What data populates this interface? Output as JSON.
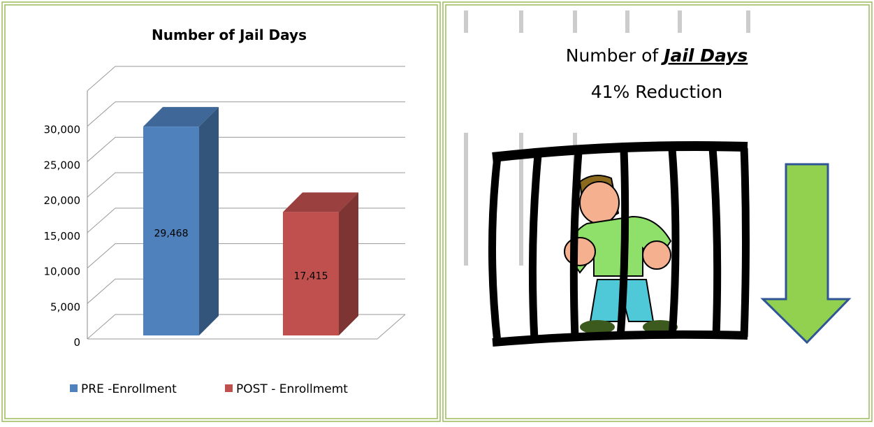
{
  "chart_data": {
    "type": "bar3d",
    "title": "Number of Jail Days",
    "categories": [
      null
    ],
    "series": [
      {
        "name": "PRE -Enrollment",
        "color": "#4f81bd",
        "values": [
          29468
        ],
        "value_labels": [
          "29,468"
        ]
      },
      {
        "name": "POST - Enrollmemt",
        "color": "#c0504d",
        "values": [
          17415
        ],
        "value_labels": [
          "17,415"
        ]
      }
    ],
    "ylim": [
      0,
      35000
    ],
    "yticks": [
      0,
      {
        "value": 5000,
        "label": "5,000"
      },
      {
        "value": 10000,
        "label": "10,000"
      },
      {
        "value": 15000,
        "label": "15,000"
      },
      {
        "value": 20000,
        "label": "20,000"
      },
      {
        "value": 25000,
        "label": "25,000"
      },
      {
        "value": 30000,
        "label": "30,000"
      }
    ],
    "grid": true,
    "legend": "bottom"
  },
  "panel": {
    "title_prefix": "Number of",
    "title_emphasis": "Jail Days",
    "subtitle": "41% Reduction"
  }
}
